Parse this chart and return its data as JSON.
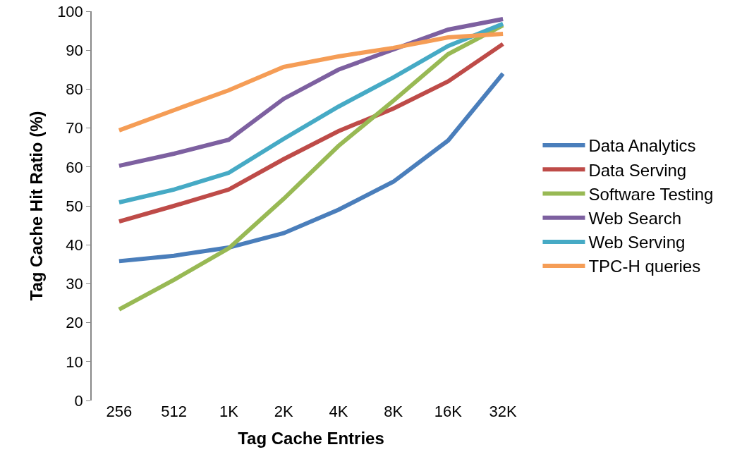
{
  "chart_data": {
    "type": "line",
    "xlabel": "Tag Cache Entries",
    "ylabel": "Tag Cache Hit Ratio (%)",
    "categories": [
      "256",
      "512",
      "1K",
      "2K",
      "4K",
      "8K",
      "16K",
      "32K"
    ],
    "ylim": [
      0,
      100
    ],
    "yticks": [
      0,
      10,
      20,
      30,
      40,
      50,
      60,
      70,
      80,
      90,
      100
    ],
    "grid": false,
    "legend": "right",
    "marker": "none",
    "line_style": "solid",
    "series": [
      {
        "name": "Data Analytics",
        "color": "#4a7ebb",
        "values": [
          35.8,
          37.2,
          39.3,
          43,
          49,
          56.2,
          66.8,
          84
        ]
      },
      {
        "name": "Data Serving",
        "color": "#be4b48",
        "values": [
          46,
          50,
          54.2,
          62,
          69.2,
          75,
          82,
          91.6
        ]
      },
      {
        "name": "Software Testing",
        "color": "#98b954",
        "values": [
          23.4,
          31,
          39.1,
          51.8,
          65.4,
          77,
          89,
          96.4
        ]
      },
      {
        "name": "Web Search",
        "color": "#7d60a0",
        "values": [
          60.3,
          63.4,
          67,
          77.5,
          85,
          90.2,
          95.3,
          98
        ]
      },
      {
        "name": "Web Serving",
        "color": "#46aac5",
        "values": [
          50.9,
          54.2,
          58.5,
          67.2,
          75.5,
          83,
          91.1,
          96.8
        ]
      },
      {
        "name": "TPC-H queries",
        "color": "#f59d56",
        "values": [
          69.4,
          74.6,
          79.7,
          85.7,
          88.4,
          90.6,
          93.3,
          94.2
        ]
      }
    ]
  }
}
